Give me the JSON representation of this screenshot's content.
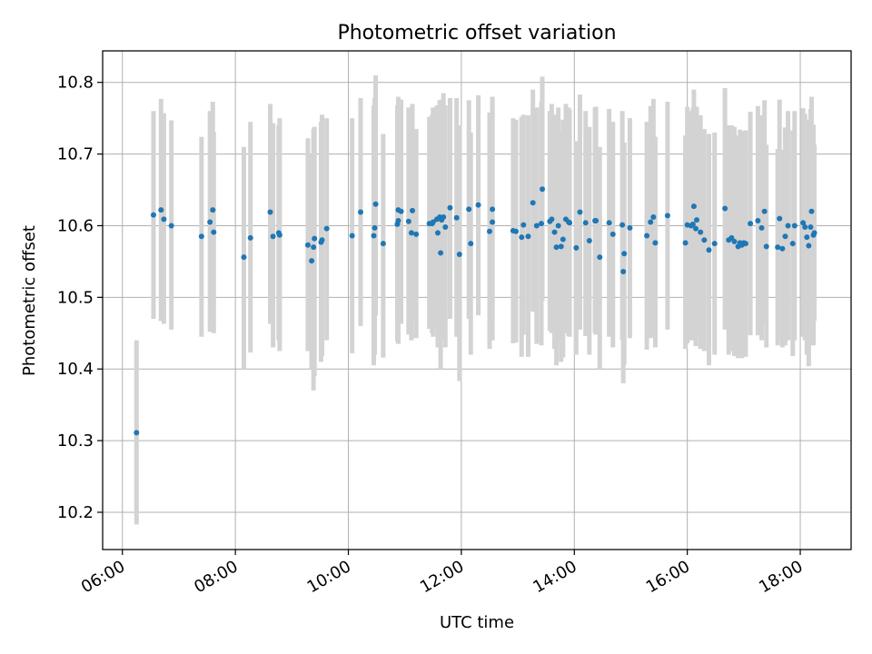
{
  "chart_data": {
    "type": "scatter",
    "title": "Photometric offset variation",
    "xlabel": "UTC time",
    "ylabel": "Photometric offset",
    "xlim": [
      "05:39",
      "18:54"
    ],
    "ylim": [
      10.148,
      10.844
    ],
    "grid": true,
    "x_ticks": [
      "06:00",
      "08:00",
      "10:00",
      "12:00",
      "14:00",
      "16:00",
      "18:00"
    ],
    "y_ticks": [
      "10.2",
      "10.3",
      "10.4",
      "10.5",
      "10.6",
      "10.7",
      "10.8"
    ],
    "colors": {
      "points": "#1f77b4",
      "error_bars": "#d3d3d3",
      "grid": "#b0b0b0"
    },
    "series": [
      {
        "x": [
          "06:15",
          "06:33",
          "06:41",
          "06:44",
          "06:52",
          "07:24",
          "07:33",
          "07:36",
          "07:37",
          "08:09",
          "08:16",
          "08:37",
          "08:40",
          "08:46",
          "08:47",
          "09:17",
          "09:21",
          "09:23",
          "09:24",
          "09:31",
          "09:32",
          "09:37",
          "10:04",
          "10:13",
          "10:27",
          "10:28",
          "10:29",
          "10:37",
          "10:52",
          "10:53",
          "10:53",
          "10:56",
          "11:04",
          "11:07",
          "11:08",
          "11:12",
          "11:26",
          "11:29",
          "11:30",
          "11:34",
          "11:35",
          "11:37",
          "11:38",
          "11:39",
          "11:41",
          "11:43",
          "11:48",
          "11:55",
          "11:58",
          "12:08",
          "12:10",
          "12:18",
          "12:30",
          "12:33",
          "12:33",
          "12:55",
          "12:58",
          "13:04",
          "13:06",
          "13:11",
          "13:16",
          "13:20",
          "13:25",
          "13:26",
          "13:34",
          "13:36",
          "13:39",
          "13:41",
          "13:43",
          "13:46",
          "13:48",
          "13:51",
          "13:54",
          "13:55",
          "14:02",
          "14:06",
          "14:12",
          "14:16",
          "14:22",
          "14:23",
          "14:27",
          "14:37",
          "14:41",
          "14:51",
          "14:52",
          "14:53",
          "14:59",
          "15:17",
          "15:21",
          "15:24",
          "15:26",
          "15:39",
          "15:58",
          "16:00",
          "16:04",
          "16:06",
          "16:07",
          "16:09",
          "16:10",
          "16:14",
          "16:18",
          "16:23",
          "16:29",
          "16:40",
          "16:44",
          "16:47",
          "16:50",
          "16:54",
          "16:56",
          "16:58",
          "17:00",
          "17:02",
          "17:07",
          "17:15",
          "17:19",
          "17:22",
          "17:24",
          "17:36",
          "17:38",
          "17:41",
          "17:44",
          "17:47",
          "17:52",
          "17:54",
          "18:03",
          "18:05",
          "18:07",
          "18:09",
          "18:11",
          "18:12",
          "18:14",
          "18:15"
        ],
        "y": [
          10.311,
          10.615,
          10.622,
          10.609,
          10.6,
          10.585,
          10.605,
          10.622,
          10.591,
          10.556,
          10.583,
          10.619,
          10.585,
          10.59,
          10.587,
          10.573,
          10.551,
          10.57,
          10.582,
          10.577,
          10.58,
          10.596,
          10.586,
          10.619,
          10.586,
          10.597,
          10.63,
          10.575,
          10.602,
          10.607,
          10.622,
          10.62,
          10.606,
          10.59,
          10.621,
          10.588,
          10.603,
          10.603,
          10.605,
          10.609,
          10.59,
          10.612,
          10.562,
          10.608,
          10.612,
          10.598,
          10.625,
          10.611,
          10.56,
          10.623,
          10.575,
          10.629,
          10.592,
          10.605,
          10.623,
          10.593,
          10.592,
          10.584,
          10.601,
          10.585,
          10.632,
          10.6,
          10.603,
          10.651,
          10.606,
          10.609,
          10.591,
          10.57,
          10.6,
          10.571,
          10.581,
          10.609,
          10.605,
          10.604,
          10.569,
          10.619,
          10.604,
          10.579,
          10.607,
          10.607,
          10.556,
          10.604,
          10.588,
          10.601,
          10.536,
          10.561,
          10.597,
          10.586,
          10.605,
          10.612,
          10.576,
          10.614,
          10.576,
          10.601,
          10.6,
          10.602,
          10.627,
          10.596,
          10.608,
          10.591,
          10.58,
          10.566,
          10.575,
          10.624,
          10.58,
          10.583,
          10.578,
          10.571,
          10.576,
          10.573,
          10.576,
          10.575,
          10.603,
          10.607,
          10.597,
          10.62,
          10.571,
          10.57,
          10.61,
          10.568,
          10.585,
          10.6,
          10.575,
          10.6,
          10.604,
          10.598,
          10.584,
          10.572,
          10.598,
          10.62,
          10.587,
          10.59
        ],
        "err_low": [
          10.183,
          10.47,
          10.467,
          10.463,
          10.455,
          10.445,
          10.452,
          10.47,
          10.45,
          10.4,
          10.423,
          10.463,
          10.43,
          10.44,
          10.425,
          10.425,
          10.4,
          10.37,
          10.39,
          10.41,
          10.418,
          10.44,
          10.422,
          10.46,
          10.405,
          10.42,
          10.475,
          10.416,
          10.438,
          10.435,
          10.47,
          10.463,
          10.448,
          10.44,
          10.47,
          10.443,
          10.456,
          10.45,
          10.445,
          10.455,
          10.43,
          10.455,
          10.4,
          10.44,
          10.44,
          10.43,
          10.47,
          10.445,
          10.383,
          10.47,
          10.42,
          10.475,
          10.428,
          10.44,
          10.465,
          10.436,
          10.437,
          10.417,
          10.448,
          10.417,
          10.48,
          10.435,
          10.433,
          10.495,
          10.453,
          10.45,
          10.428,
          10.405,
          10.437,
          10.41,
          10.416,
          10.45,
          10.446,
          10.445,
          10.42,
          10.455,
          10.446,
          10.42,
          10.45,
          10.448,
          10.4,
          10.445,
          10.43,
          10.44,
          10.38,
          10.406,
          10.443,
          10.427,
          10.443,
          10.447,
          10.43,
          10.455,
          10.428,
          10.436,
          10.44,
          10.44,
          10.465,
          10.432,
          10.45,
          10.428,
          10.425,
          10.405,
          10.42,
          10.455,
          10.42,
          10.425,
          10.418,
          10.415,
          10.418,
          10.415,
          10.42,
          10.417,
          10.447,
          10.447,
          10.44,
          10.465,
          10.43,
          10.433,
          10.443,
          10.43,
          10.433,
          10.44,
          10.418,
          10.44,
          10.445,
          10.44,
          10.42,
          10.404,
          10.433,
          10.46,
          10.433,
          10.467
        ],
        "err_high": [
          10.44,
          10.76,
          10.777,
          10.757,
          10.747,
          10.724,
          10.76,
          10.773,
          10.731,
          10.71,
          10.745,
          10.77,
          10.743,
          10.74,
          10.75,
          10.722,
          10.7,
          10.735,
          10.738,
          10.745,
          10.755,
          10.75,
          10.75,
          10.778,
          10.768,
          10.778,
          10.81,
          10.728,
          10.768,
          10.78,
          10.777,
          10.776,
          10.765,
          10.74,
          10.77,
          10.735,
          10.752,
          10.755,
          10.765,
          10.768,
          10.75,
          10.775,
          10.722,
          10.776,
          10.785,
          10.768,
          10.778,
          10.778,
          10.74,
          10.775,
          10.73,
          10.782,
          10.758,
          10.77,
          10.78,
          10.75,
          10.748,
          10.752,
          10.755,
          10.754,
          10.79,
          10.765,
          10.773,
          10.808,
          10.76,
          10.77,
          10.755,
          10.735,
          10.765,
          10.733,
          10.748,
          10.77,
          10.765,
          10.762,
          10.718,
          10.783,
          10.76,
          10.738,
          10.765,
          10.766,
          10.71,
          10.763,
          10.745,
          10.76,
          10.69,
          10.716,
          10.75,
          10.745,
          10.767,
          10.777,
          10.724,
          10.773,
          10.726,
          10.766,
          10.76,
          10.764,
          10.79,
          10.76,
          10.766,
          10.754,
          10.735,
          10.728,
          10.73,
          10.792,
          10.74,
          10.74,
          10.738,
          10.726,
          10.734,
          10.731,
          10.732,
          10.733,
          10.759,
          10.767,
          10.754,
          10.775,
          10.713,
          10.707,
          10.776,
          10.706,
          10.737,
          10.76,
          10.733,
          10.76,
          10.764,
          10.756,
          10.748,
          10.74,
          10.763,
          10.78,
          10.741,
          10.713
        ]
      }
    ]
  }
}
